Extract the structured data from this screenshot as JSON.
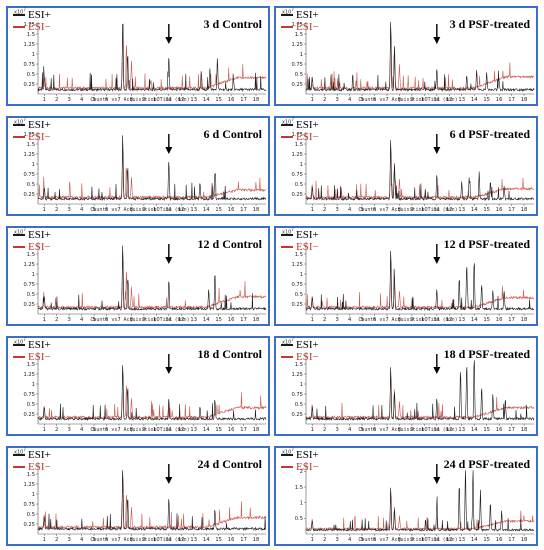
{
  "figure": {
    "legend": [
      {
        "name": "ESI+",
        "color": "#1a1a1a"
      },
      {
        "name": "ESI−",
        "color": "#c0392b"
      }
    ],
    "exponent_label": "x10",
    "exponent_power": "7",
    "xlabel": "Counts vs. Acquisition Time (min)",
    "x_ticks": [
      "1",
      "2",
      "3",
      "4",
      "5",
      "6",
      "7",
      "8",
      "9",
      "10",
      "11",
      "12",
      "13",
      "14",
      "15",
      "16",
      "17",
      "18"
    ],
    "arrow_at_min": 11.0
  },
  "chart_data": [
    {
      "type": "line",
      "title": "3 d Control",
      "xlabel": "Counts vs. Acquisition Time (min)",
      "xlim": [
        0.5,
        18.8
      ],
      "ylim": [
        0,
        1.8
      ],
      "y_ticks": [
        "0.25",
        "0.5",
        "0.75",
        "1",
        "1.25",
        "1.5",
        "1.75"
      ],
      "series": [
        {
          "name": "ESI+",
          "peaks": [
            [
              1.0,
              0.35
            ],
            [
              7.3,
              1.7
            ],
            [
              7.7,
              0.9
            ],
            [
              11.0,
              0.85
            ],
            [
              13.6,
              0.45
            ],
            [
              14.3,
              0.55
            ],
            [
              14.9,
              0.8
            ],
            [
              16.2,
              0.2
            ]
          ],
          "baseline": 0.08
        },
        {
          "name": "ESI−",
          "peaks": [
            [
              1.0,
              0.3
            ],
            [
              7.3,
              1.45
            ],
            [
              7.6,
              1.1
            ],
            [
              8.0,
              0.7
            ],
            [
              9.5,
              0.2
            ]
          ],
          "baseline": 0.12,
          "tail": 0.38
        }
      ]
    },
    {
      "type": "line",
      "title": "3 d PSF-treated",
      "xlabel": "Counts vs. Acquisition Time (min)",
      "xlim": [
        0.5,
        18.8
      ],
      "ylim": [
        0,
        1.8
      ],
      "y_ticks": [
        "0.25",
        "0.5",
        "0.75",
        "1",
        "1.25",
        "1.5",
        "1.75"
      ],
      "series": [
        {
          "name": "ESI+",
          "peaks": [
            [
              1.0,
              0.3
            ],
            [
              7.3,
              1.75
            ],
            [
              7.6,
              1.1
            ],
            [
              11.0,
              0.55
            ],
            [
              13.4,
              0.35
            ],
            [
              14.2,
              0.5
            ],
            [
              15.0,
              0.4
            ],
            [
              16.0,
              0.25
            ]
          ],
          "baseline": 0.08
        },
        {
          "name": "ESI−",
          "peaks": [
            [
              1.0,
              0.25
            ],
            [
              7.3,
              1.55
            ],
            [
              7.6,
              1.0
            ],
            [
              8.0,
              0.6
            ]
          ],
          "baseline": 0.12,
          "tail": 0.4
        }
      ]
    },
    {
      "type": "line",
      "title": "6 d Control",
      "xlabel": "Counts vs. Acquisition Time (min)",
      "xlim": [
        0.5,
        18.8
      ],
      "ylim": [
        0,
        1.8
      ],
      "y_ticks": [
        "0.25",
        "0.5",
        "0.75",
        "1",
        "1.25",
        "1.5",
        "1.75"
      ],
      "series": [
        {
          "name": "ESI+",
          "peaks": [
            [
              1.0,
              0.3
            ],
            [
              7.3,
              1.6
            ],
            [
              7.7,
              0.8
            ],
            [
              11.0,
              1.0
            ],
            [
              13.5,
              0.4
            ],
            [
              14.7,
              0.7
            ]
          ],
          "baseline": 0.1
        },
        {
          "name": "ESI−",
          "peaks": [
            [
              1.0,
              0.25
            ],
            [
              7.3,
              1.2
            ],
            [
              7.6,
              0.7
            ],
            [
              8.0,
              0.5
            ]
          ],
          "baseline": 0.14,
          "tail": 0.32
        }
      ]
    },
    {
      "type": "line",
      "title": "6 d PSF-treated",
      "xlabel": "Counts vs. Acquisition Time (min)",
      "xlim": [
        0.5,
        18.8
      ],
      "ylim": [
        0,
        1.8
      ],
      "y_ticks": [
        "0.25",
        "0.5",
        "0.75",
        "1",
        "1.25",
        "1.5",
        "1.75"
      ],
      "series": [
        {
          "name": "ESI+",
          "peaks": [
            [
              1.0,
              0.3
            ],
            [
              7.3,
              1.5
            ],
            [
              7.6,
              0.9
            ],
            [
              11.0,
              0.6
            ],
            [
              13.0,
              0.45
            ],
            [
              13.6,
              0.55
            ],
            [
              14.4,
              0.7
            ],
            [
              15.3,
              0.45
            ],
            [
              16.4,
              0.3
            ]
          ],
          "baseline": 0.1
        },
        {
          "name": "ESI−",
          "peaks": [
            [
              1.0,
              0.3
            ],
            [
              7.3,
              1.35
            ],
            [
              7.6,
              0.8
            ],
            [
              8.0,
              0.45
            ]
          ],
          "baseline": 0.14,
          "tail": 0.35
        }
      ]
    },
    {
      "type": "line",
      "title": "12 d Control",
      "xlabel": "Counts vs. Acquisition Time (min)",
      "xlim": [
        0.5,
        18.8
      ],
      "ylim": [
        0,
        1.8
      ],
      "y_ticks": [
        "0.25",
        "0.5",
        "0.75",
        "1",
        "1.25",
        "1.5"
      ],
      "series": [
        {
          "name": "ESI+",
          "peaks": [
            [
              1.0,
              0.3
            ],
            [
              7.3,
              1.6
            ],
            [
              7.7,
              0.8
            ],
            [
              11.0,
              0.75
            ],
            [
              14.2,
              0.5
            ],
            [
              14.7,
              0.9
            ]
          ],
          "baseline": 0.1
        },
        {
          "name": "ESI−",
          "peaks": [
            [
              1.0,
              0.3
            ],
            [
              7.3,
              1.35
            ],
            [
              7.6,
              0.9
            ],
            [
              8.0,
              0.5
            ]
          ],
          "baseline": 0.14,
          "tail": 0.4
        }
      ]
    },
    {
      "type": "line",
      "title": "12 d PSF-treated",
      "xlabel": "Counts vs. Acquisition Time (min)",
      "xlim": [
        0.5,
        18.8
      ],
      "ylim": [
        0,
        1.8
      ],
      "y_ticks": [
        "0.25",
        "0.5",
        "0.75",
        "1",
        "1.25",
        "1.5"
      ],
      "series": [
        {
          "name": "ESI+",
          "peaks": [
            [
              1.0,
              0.3
            ],
            [
              7.3,
              1.5
            ],
            [
              7.6,
              0.8
            ],
            [
              11.0,
              0.5
            ],
            [
              12.8,
              0.8
            ],
            [
              13.4,
              1.15
            ],
            [
              14.0,
              1.25
            ],
            [
              14.6,
              0.6
            ],
            [
              15.5,
              0.5
            ],
            [
              16.4,
              0.45
            ]
          ],
          "baseline": 0.1
        },
        {
          "name": "ESI−",
          "peaks": [
            [
              1.0,
              0.3
            ],
            [
              7.3,
              1.25
            ],
            [
              7.6,
              0.7
            ],
            [
              8.0,
              0.4
            ]
          ],
          "baseline": 0.14,
          "tail": 0.38
        }
      ]
    },
    {
      "type": "line",
      "title": "18 d Control",
      "xlabel": "Counts vs. Acquisition Time (min)",
      "xlim": [
        0.5,
        18.8
      ],
      "ylim": [
        0,
        1.8
      ],
      "y_ticks": [
        "0.25",
        "0.5",
        "0.75",
        "1",
        "1.25",
        "1.5"
      ],
      "series": [
        {
          "name": "ESI+",
          "peaks": [
            [
              1.0,
              0.3
            ],
            [
              7.3,
              1.4
            ],
            [
              7.7,
              0.8
            ],
            [
              11.0,
              0.55
            ],
            [
              13.5,
              0.3
            ],
            [
              14.7,
              0.5
            ]
          ],
          "baseline": 0.1
        },
        {
          "name": "ESI−",
          "peaks": [
            [
              1.0,
              0.3
            ],
            [
              7.3,
              1.3
            ],
            [
              7.6,
              0.8
            ],
            [
              8.0,
              0.5
            ]
          ],
          "baseline": 0.14,
          "tail": 0.38
        }
      ]
    },
    {
      "type": "line",
      "title": "18 d PSF-treated",
      "xlabel": "Counts vs. Acquisition Time (min)",
      "xlim": [
        0.5,
        18.8
      ],
      "ylim": [
        0,
        1.8
      ],
      "y_ticks": [
        "0.25",
        "0.5",
        "0.75",
        "1",
        "1.25",
        "1.5"
      ],
      "series": [
        {
          "name": "ESI+",
          "peaks": [
            [
              1.0,
              0.3
            ],
            [
              7.3,
              1.3
            ],
            [
              7.6,
              0.7
            ],
            [
              11.0,
              0.5
            ],
            [
              12.9,
              1.25
            ],
            [
              13.4,
              1.4
            ],
            [
              14.0,
              1.6
            ],
            [
              14.6,
              0.8
            ],
            [
              15.5,
              0.6
            ],
            [
              16.5,
              0.5
            ]
          ],
          "baseline": 0.1
        },
        {
          "name": "ESI−",
          "peaks": [
            [
              1.0,
              0.3
            ],
            [
              7.3,
              1.1
            ],
            [
              7.6,
              0.7
            ],
            [
              8.0,
              0.4
            ]
          ],
          "baseline": 0.14,
          "tail": 0.38
        }
      ]
    },
    {
      "type": "line",
      "title": "24 d Control",
      "xlabel": "Counts vs. Acquisition Time (min)",
      "xlim": [
        0.5,
        18.8
      ],
      "ylim": [
        0,
        1.8
      ],
      "y_ticks": [
        "0.25",
        "0.5",
        "0.75",
        "1",
        "1.25",
        "1.5"
      ],
      "series": [
        {
          "name": "ESI+",
          "peaks": [
            [
              1.0,
              0.3
            ],
            [
              7.3,
              1.5
            ],
            [
              7.7,
              0.8
            ],
            [
              11.0,
              0.8
            ],
            [
              14.7,
              0.5
            ]
          ],
          "baseline": 0.1
        },
        {
          "name": "ESI−",
          "peaks": [
            [
              1.0,
              0.3
            ],
            [
              7.3,
              1.4
            ],
            [
              7.6,
              0.85
            ],
            [
              8.0,
              0.5
            ]
          ],
          "baseline": 0.14,
          "tail": 0.38
        }
      ]
    },
    {
      "type": "line",
      "title": "24 d PSF-treated",
      "xlabel": "Counts vs. Acquisition Time (min)",
      "xlim": [
        0.5,
        18.8
      ],
      "ylim": [
        0,
        2.3
      ],
      "y_ticks": [
        "0.5",
        "1",
        "1.5",
        "2"
      ],
      "series": [
        {
          "name": "ESI+",
          "peaks": [
            [
              1.0,
              0.3
            ],
            [
              7.3,
              1.4
            ],
            [
              7.6,
              0.7
            ],
            [
              11.0,
              0.85
            ],
            [
              12.8,
              1.5
            ],
            [
              13.3,
              2.0
            ],
            [
              13.9,
              1.95
            ],
            [
              14.5,
              1.3
            ],
            [
              15.3,
              0.9
            ],
            [
              16.2,
              0.6
            ]
          ],
          "baseline": 0.1
        },
        {
          "name": "ESI−",
          "peaks": [
            [
              1.0,
              0.3
            ],
            [
              7.3,
              1.2
            ],
            [
              7.6,
              0.7
            ],
            [
              8.0,
              0.4
            ]
          ],
          "baseline": 0.14,
          "tail": 0.38
        }
      ]
    }
  ]
}
